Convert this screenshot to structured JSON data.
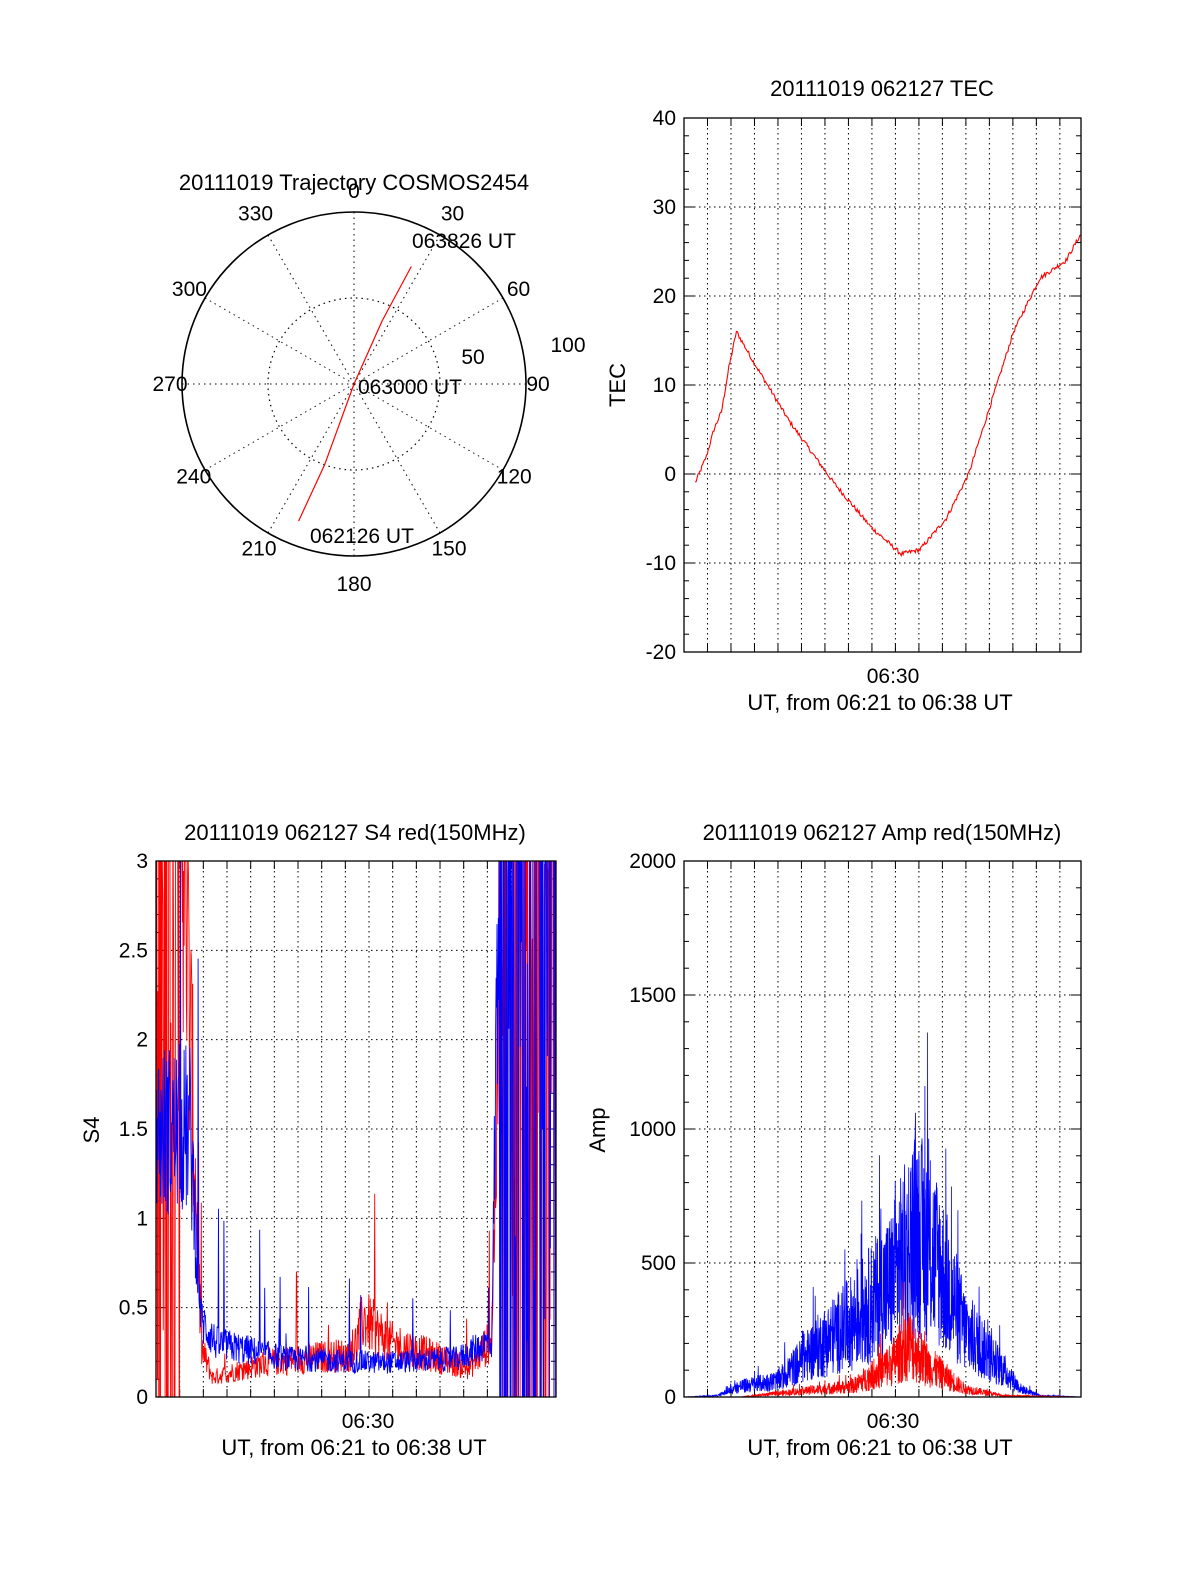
{
  "colors": {
    "red": "#ff0000",
    "blue": "#0000ff",
    "axis": "#000000",
    "grid": "#000000"
  },
  "chart_data": [
    {
      "type": "polar",
      "title": "20111019 Trajectory COSMOS2454",
      "angle_labels": [
        {
          "deg": 0,
          "label": "0"
        },
        {
          "deg": 30,
          "label": "30"
        },
        {
          "deg": 60,
          "label": "60"
        },
        {
          "deg": 90,
          "label": "90"
        },
        {
          "deg": 120,
          "label": "120"
        },
        {
          "deg": 150,
          "label": "150"
        },
        {
          "deg": 180,
          "label": "180"
        },
        {
          "deg": 210,
          "label": "210"
        },
        {
          "deg": 240,
          "label": "240"
        },
        {
          "deg": 270,
          "label": "270"
        },
        {
          "deg": 300,
          "label": "300"
        },
        {
          "deg": 330,
          "label": "330"
        }
      ],
      "radial_ticks": [
        "50",
        "100"
      ],
      "rmax": 100,
      "trajectory": [
        {
          "az": 202,
          "r": 86
        },
        {
          "az": 200,
          "r": 50
        },
        {
          "az": 0,
          "r": 0
        },
        {
          "az": 24,
          "r": 40
        },
        {
          "az": 26,
          "r": 76
        }
      ],
      "annotations": [
        "063826 UT",
        "063000 UT",
        "062126 UT"
      ],
      "series_color": "red"
    },
    {
      "type": "line",
      "title": "20111019 062127 TEC",
      "ylabel": "TEC",
      "xlabel": "UT, from 06:21 to 06:38 UT",
      "x_tick_label": "06:30",
      "ylim": [
        -20,
        40
      ],
      "yticks": [
        "-20",
        "-10",
        "0",
        "10",
        "20",
        "30",
        "40"
      ],
      "series": [
        {
          "color": "red",
          "points": [
            [
              0.3,
              -1
            ],
            [
              0.6,
              2
            ],
            [
              0.8,
              5
            ],
            [
              1.0,
              7
            ],
            [
              1.2,
              12
            ],
            [
              1.4,
              16
            ],
            [
              1.8,
              13
            ],
            [
              2.8,
              6
            ],
            [
              4.0,
              -1
            ],
            [
              5.0,
              -6
            ],
            [
              5.8,
              -9
            ],
            [
              6.3,
              -8.5
            ],
            [
              7.0,
              -5
            ],
            [
              7.6,
              0
            ],
            [
              8.2,
              8
            ],
            [
              8.8,
              16
            ],
            [
              9.5,
              22
            ],
            [
              10.2,
              24
            ],
            [
              10.6,
              27
            ]
          ]
        }
      ]
    },
    {
      "type": "line",
      "title": "20111019 062127 S4 red(150MHz)",
      "ylabel": "S4",
      "xlabel": "UT, from 06:21 to 06:38 UT",
      "x_tick_label": "06:30",
      "ylim": [
        0,
        3
      ],
      "yticks": [
        "0",
        "0.5",
        "1",
        "1.5",
        "2",
        "2.5",
        "3"
      ],
      "series": [
        {
          "color": "red",
          "level_profile": [
            [
              0.0,
              3.0
            ],
            [
              0.7,
              3.0
            ],
            [
              1.2,
              0.25
            ],
            [
              1.5,
              0.1
            ],
            [
              3.0,
              0.18
            ],
            [
              5.2,
              0.22
            ],
            [
              5.5,
              0.4
            ],
            [
              6.2,
              0.28
            ],
            [
              7.5,
              0.2
            ],
            [
              8.3,
              0.15
            ],
            [
              8.9,
              0.3
            ],
            [
              9.2,
              3.0
            ],
            [
              10.6,
              3.0
            ]
          ]
        },
        {
          "color": "blue",
          "level_profile": [
            [
              0.0,
              1.4
            ],
            [
              0.9,
              1.4
            ],
            [
              1.2,
              0.4
            ],
            [
              1.6,
              0.28
            ],
            [
              3.5,
              0.2
            ],
            [
              6.0,
              0.18
            ],
            [
              8.0,
              0.2
            ],
            [
              8.9,
              0.3
            ],
            [
              9.1,
              3.0
            ],
            [
              10.6,
              3.0
            ]
          ]
        }
      ]
    },
    {
      "type": "line",
      "title": "20111019 062127 Amp red(150MHz)",
      "ylabel": "Amp",
      "xlabel": "UT, from 06:21 to 06:38 UT",
      "x_tick_label": "06:30",
      "ylim": [
        0,
        2000
      ],
      "yticks": [
        "0",
        "500",
        "1000",
        "1500",
        "2000"
      ],
      "series": [
        {
          "color": "red",
          "level_profile": [
            [
              0.0,
              0
            ],
            [
              1.5,
              0
            ],
            [
              3.0,
              20
            ],
            [
              4.5,
              40
            ],
            [
              5.5,
              120
            ],
            [
              6.0,
              200
            ],
            [
              6.5,
              120
            ],
            [
              7.5,
              30
            ],
            [
              8.5,
              5
            ],
            [
              10.6,
              0
            ]
          ]
        },
        {
          "color": "blue",
          "level_profile": [
            [
              0.0,
              0
            ],
            [
              0.9,
              5
            ],
            [
              1.5,
              40
            ],
            [
              2.5,
              60
            ],
            [
              3.5,
              180
            ],
            [
              4.5,
              280
            ],
            [
              5.5,
              420
            ],
            [
              6.2,
              620
            ],
            [
              6.8,
              500
            ],
            [
              7.5,
              250
            ],
            [
              8.2,
              150
            ],
            [
              9.0,
              30
            ],
            [
              9.5,
              5
            ],
            [
              10.6,
              0
            ]
          ]
        }
      ]
    }
  ]
}
